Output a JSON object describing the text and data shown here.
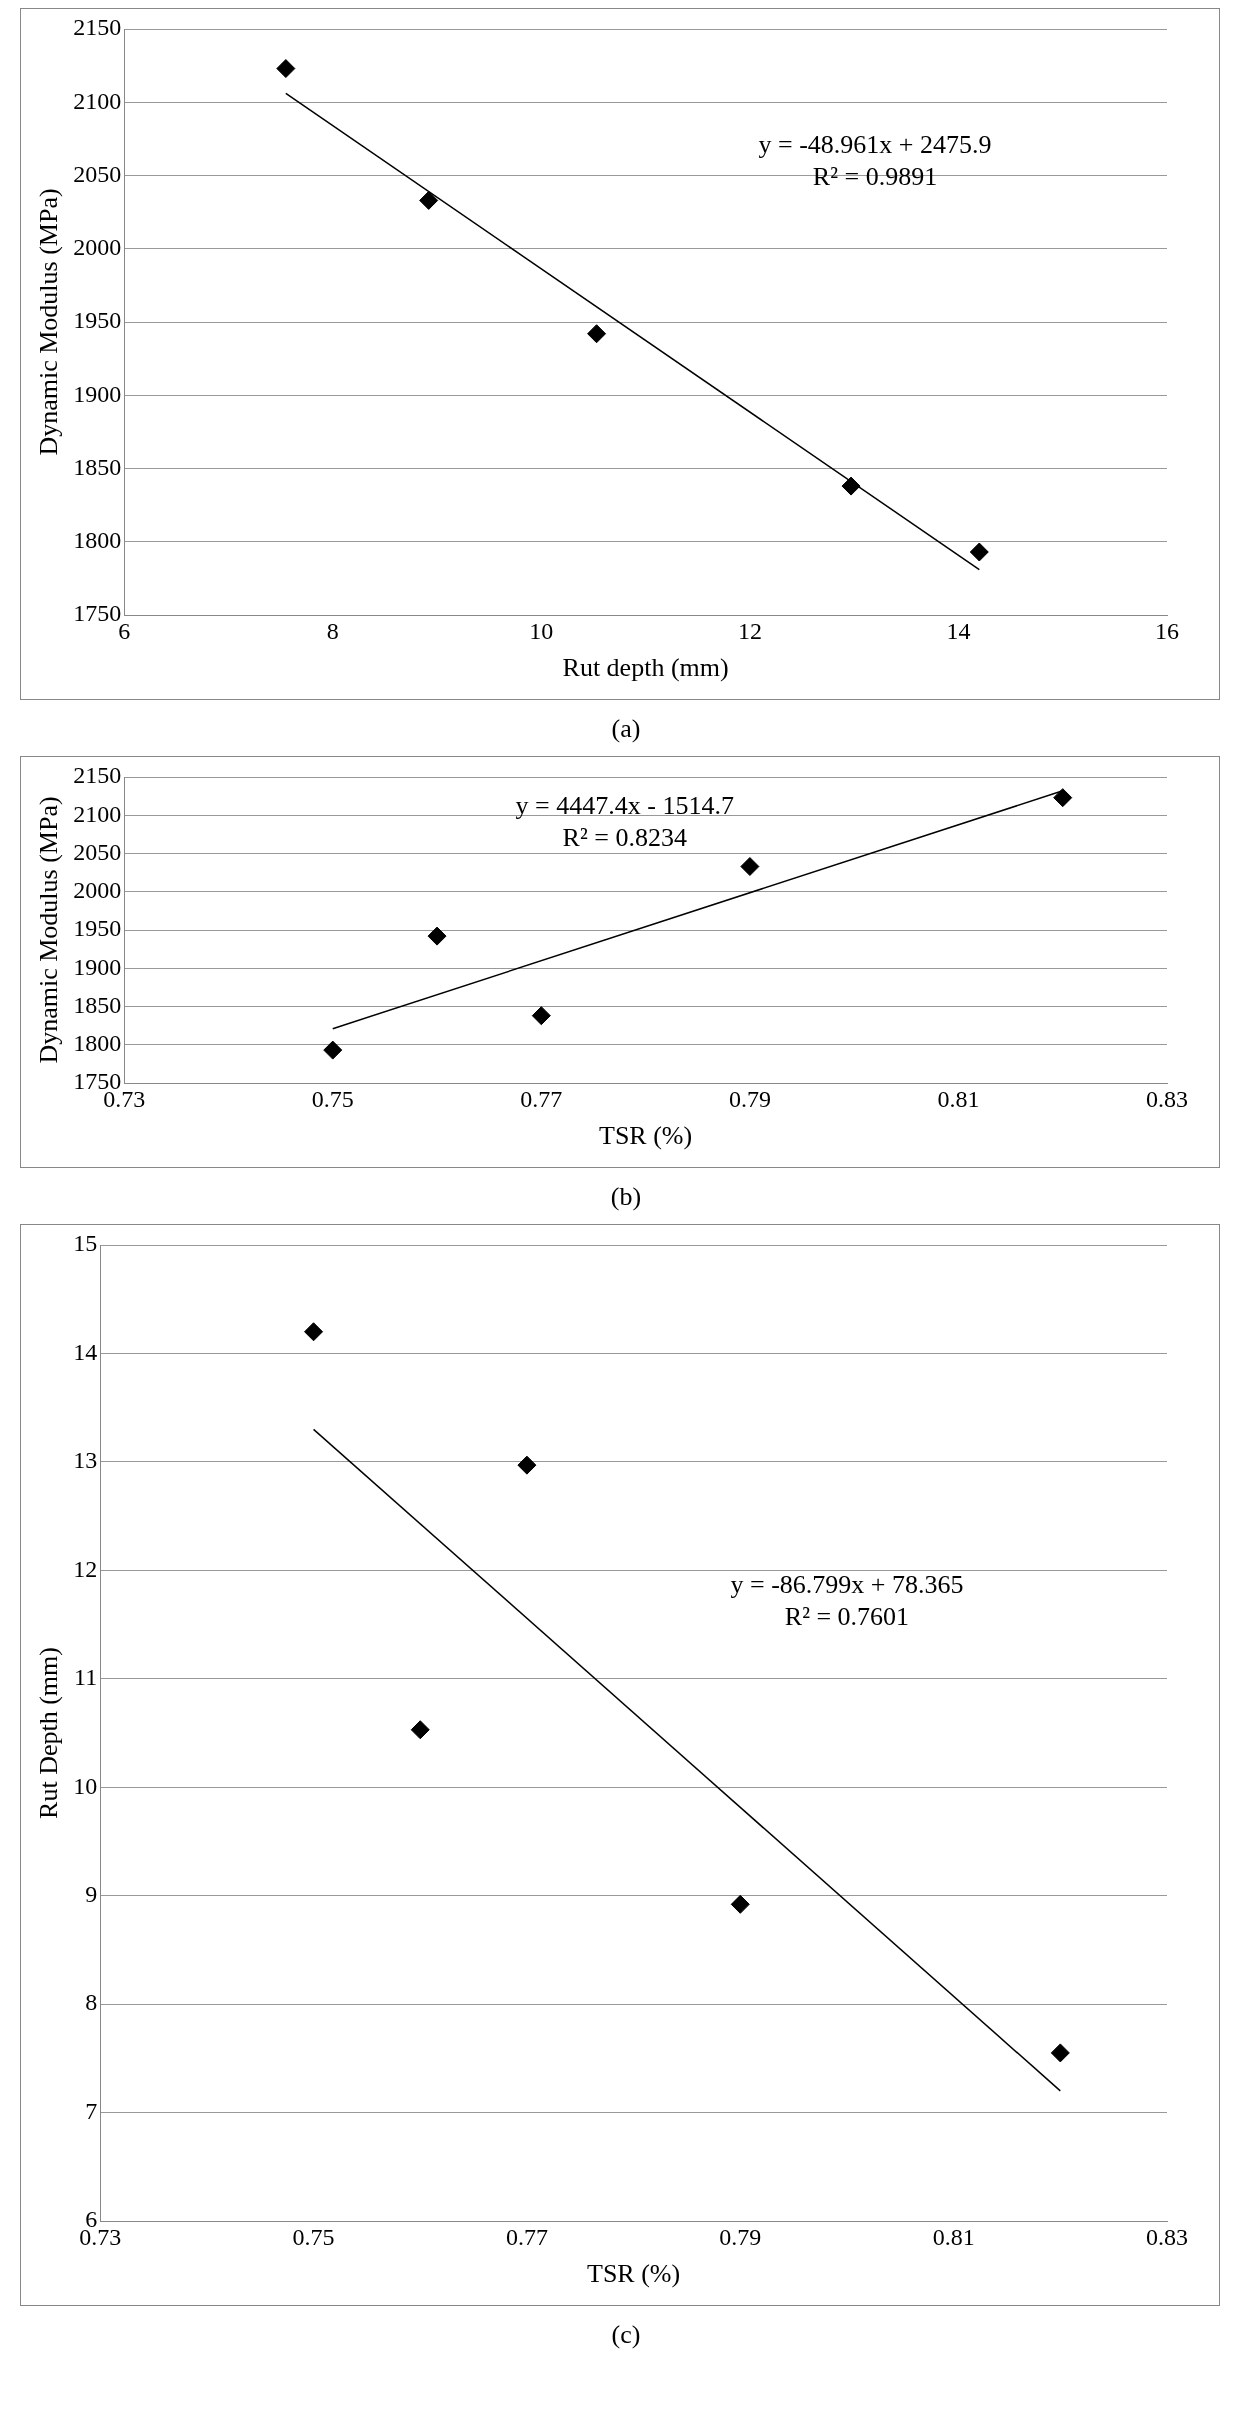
{
  "chart_data": [
    {
      "type": "scatter",
      "xlabel": "Rut depth (mm)",
      "ylabel": "Dynamic Modulus (MPa)",
      "xlim": [
        6,
        16
      ],
      "xticks": [
        6,
        8,
        10,
        12,
        14,
        16
      ],
      "ylim": [
        1750,
        2150
      ],
      "yticks": [
        1750,
        1800,
        1850,
        1900,
        1950,
        2000,
        2050,
        2100,
        2150
      ],
      "grid": "y",
      "legend": false,
      "marker": "diamond",
      "annotations": [
        "y = -48.961x + 2475.9",
        "R² = 0.9891",
        "(a)"
      ],
      "series": [
        {
          "type": "scatter",
          "color": "#000000",
          "x": [
            7.55,
            8.92,
            10.53,
            12.97,
            14.2
          ],
          "values": [
            2123,
            2033,
            1942,
            1838,
            1793
          ]
        },
        {
          "type": "line",
          "color": "#000000",
          "marker": "none",
          "line_style": "solid",
          "x": [
            7.55,
            14.2
          ],
          "values": [
            2106,
            1781
          ]
        }
      ]
    },
    {
      "type": "scatter",
      "xlabel": "TSR (%)",
      "ylabel": "Dynamic Modulus (MPa)",
      "xlim": [
        0.73,
        0.83
      ],
      "xticks": [
        0.73,
        0.75,
        0.77,
        0.79,
        0.81,
        0.83
      ],
      "ylim": [
        1750,
        2150
      ],
      "yticks": [
        1750,
        1800,
        1850,
        1900,
        1950,
        2000,
        2050,
        2100,
        2150
      ],
      "grid": "y",
      "legend": false,
      "marker": "diamond",
      "annotations": [
        "y = 4447.4x - 1514.7",
        "R² = 0.8234",
        "(b)"
      ],
      "series": [
        {
          "type": "scatter",
          "color": "#000000",
          "x": [
            0.75,
            0.76,
            0.77,
            0.79,
            0.82
          ],
          "values": [
            1793,
            1942,
            1838,
            2033,
            2123
          ]
        },
        {
          "type": "line",
          "color": "#000000",
          "marker": "none",
          "line_style": "solid",
          "x": [
            0.75,
            0.82
          ],
          "values": [
            1821,
            2132
          ]
        }
      ]
    },
    {
      "type": "scatter",
      "xlabel": "TSR (%)",
      "ylabel": "Rut Depth (mm)",
      "xlim": [
        0.73,
        0.83
      ],
      "xticks": [
        0.73,
        0.75,
        0.77,
        0.79,
        0.81,
        0.83
      ],
      "ylim": [
        6,
        15
      ],
      "yticks": [
        6,
        7,
        8,
        9,
        10,
        11,
        12,
        13,
        14,
        15
      ],
      "grid": "y",
      "legend": false,
      "marker": "diamond",
      "annotations": [
        "y = -86.799x + 78.365",
        "R² = 0.7601",
        "(c)"
      ],
      "series": [
        {
          "type": "scatter",
          "color": "#000000",
          "x": [
            0.75,
            0.76,
            0.77,
            0.79,
            0.82
          ],
          "values": [
            14.2,
            10.53,
            12.97,
            8.92,
            7.55
          ]
        },
        {
          "type": "line",
          "color": "#000000",
          "marker": "none",
          "line_style": "solid",
          "x": [
            0.75,
            0.82
          ],
          "values": [
            13.3,
            7.2
          ]
        }
      ]
    }
  ]
}
